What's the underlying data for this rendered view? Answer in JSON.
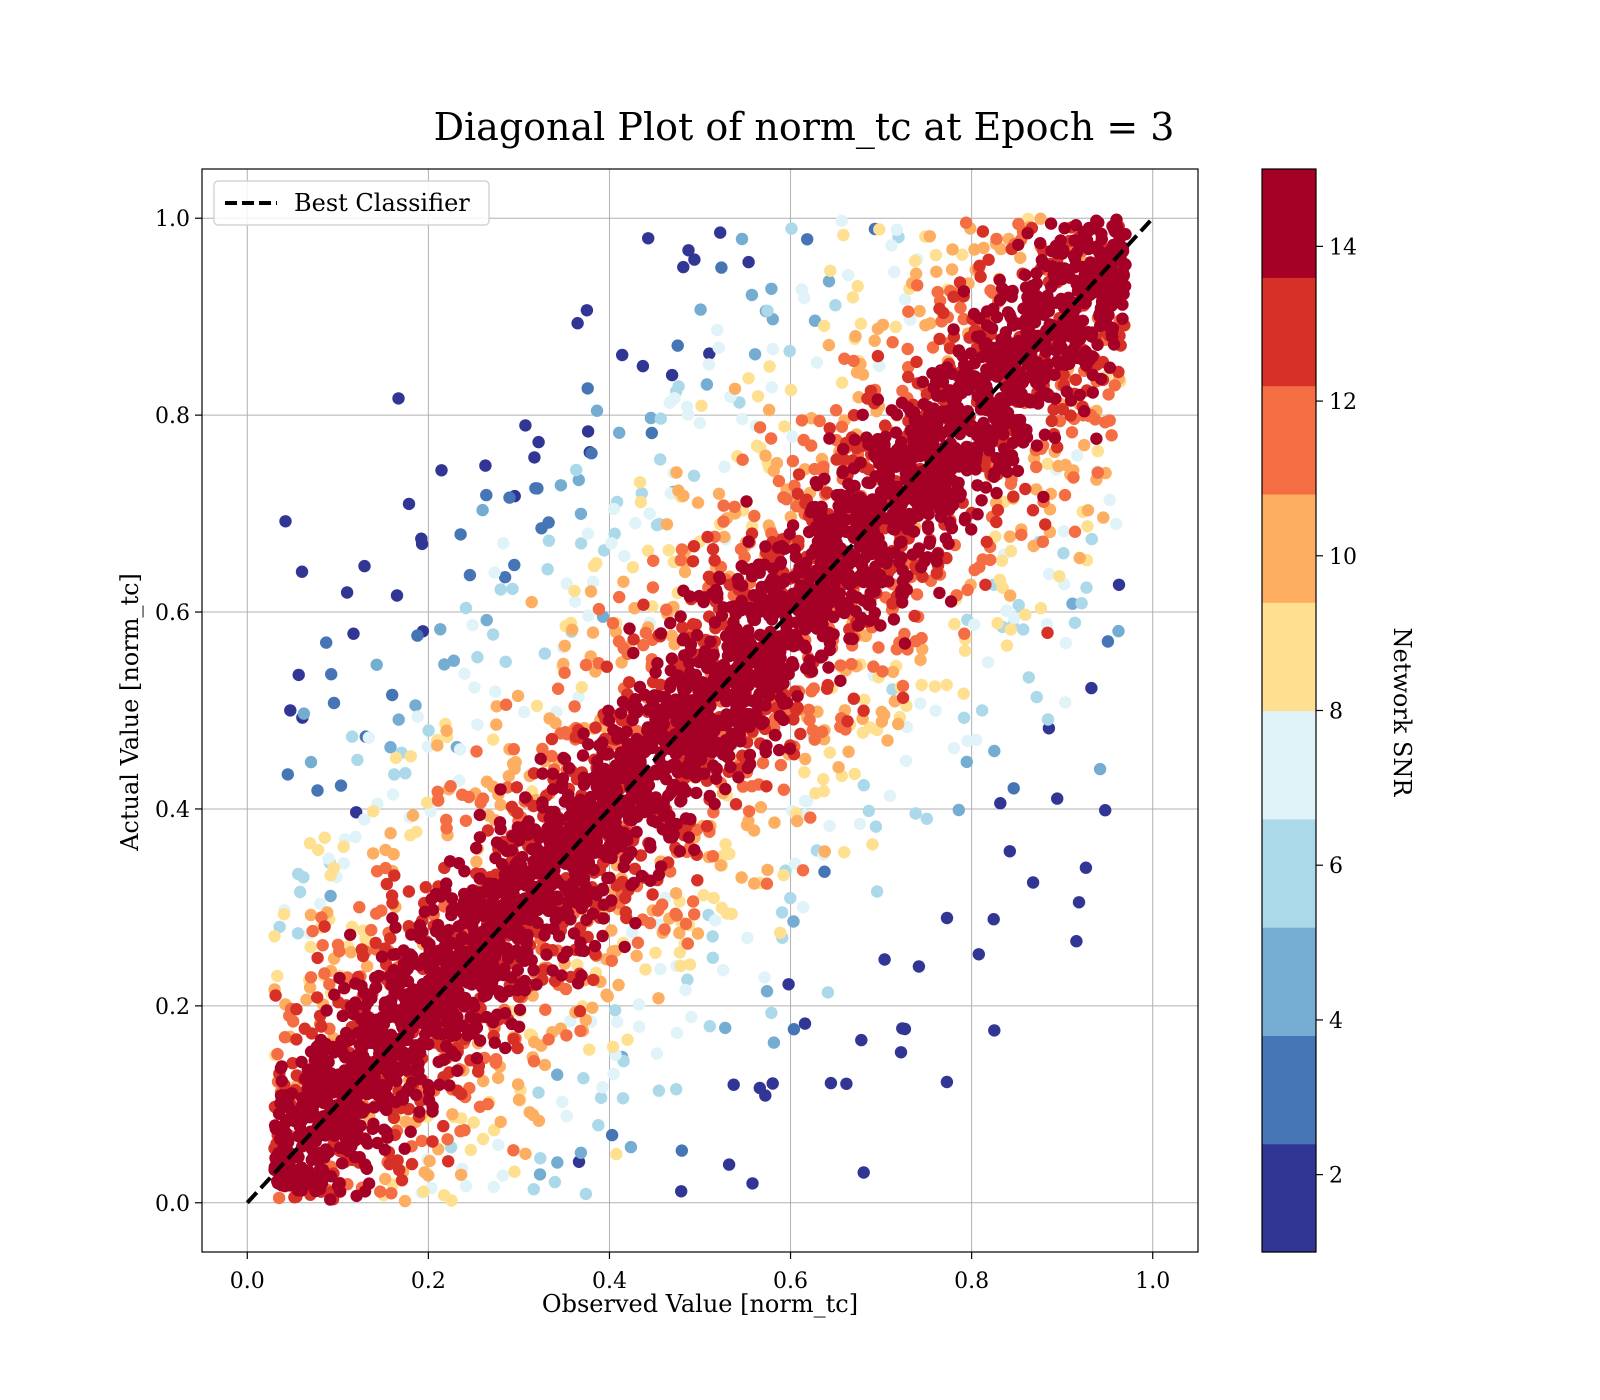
{
  "chart_data": {
    "type": "scatter",
    "title": "Diagonal Plot of norm_tc at Epoch = 3",
    "xlabel": "Observed Value [norm_tc]",
    "ylabel": "Actual Value [norm_tc]",
    "xlim": [
      -0.05,
      1.05
    ],
    "ylim": [
      -0.05,
      1.05
    ],
    "xticks": [
      "0.0",
      "0.2",
      "0.4",
      "0.6",
      "0.8",
      "1.0"
    ],
    "yticks": [
      "0.0",
      "0.2",
      "0.4",
      "0.6",
      "0.8",
      "1.0"
    ],
    "grid": true,
    "legend": {
      "placement": "upper-left",
      "entries": [
        "Best Classifier"
      ]
    },
    "reference_line": {
      "name": "Best Classifier",
      "x": [
        0.0,
        1.0
      ],
      "y": [
        0.0,
        1.0
      ],
      "style": "dashed",
      "color": "#000000"
    },
    "colorbar": {
      "label": "Network SNR",
      "range": [
        1,
        15
      ],
      "ticks": [
        "2",
        "4",
        "6",
        "8",
        "10",
        "12",
        "14"
      ],
      "tick_values": [
        2,
        4,
        6,
        8,
        10,
        12,
        14
      ],
      "colors": [
        "#313695",
        "#4575b4",
        "#74add1",
        "#abd9e9",
        "#e0f3f8",
        "#fee090",
        "#fdae61",
        "#f46d43",
        "#d73027",
        "#a50026"
      ]
    },
    "point_cloud": {
      "description_of_trend": "points concentrated along y = x; SNR highest near diagonal and decreasing with distance",
      "x_range": [
        0.03,
        0.97
      ],
      "y_range": [
        0.0,
        1.0
      ],
      "offset_range": [
        -0.65,
        0.65
      ]
    }
  }
}
